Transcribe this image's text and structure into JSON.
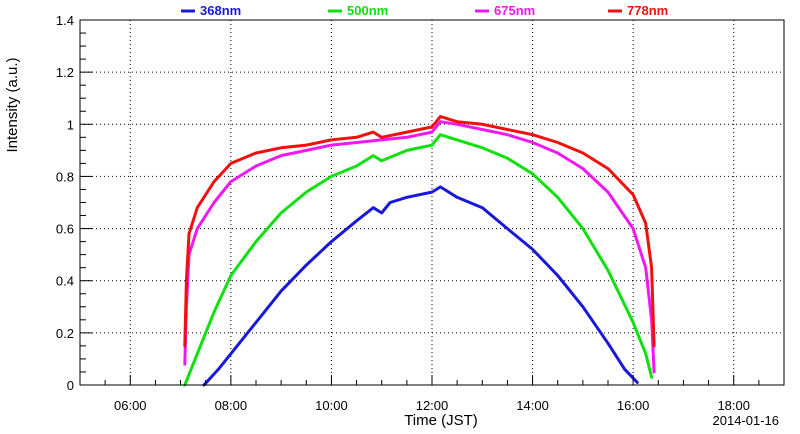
{
  "chart_data": {
    "type": "line",
    "xlabel": "Time (JST)",
    "ylabel": "Intensity (a.u.)",
    "date": "2014-01-16",
    "xlim": [
      "05:00",
      "19:00"
    ],
    "ylim": [
      0,
      1.4
    ],
    "x_ticks": [
      "06:00",
      "08:00",
      "10:00",
      "12:00",
      "14:00",
      "16:00",
      "18:00"
    ],
    "y_ticks": [
      "0",
      "0.2",
      "0.4",
      "0.6",
      "0.8",
      "1",
      "1.2",
      "1.4"
    ],
    "grid": true,
    "legend_position": "top",
    "series": [
      {
        "name": "368nm",
        "color": "#1818d8",
        "points": [
          [
            "07:28",
            0.0
          ],
          [
            "07:45",
            0.06
          ],
          [
            "08:00",
            0.12
          ],
          [
            "08:30",
            0.24
          ],
          [
            "09:00",
            0.36
          ],
          [
            "09:30",
            0.46
          ],
          [
            "10:00",
            0.55
          ],
          [
            "10:30",
            0.63
          ],
          [
            "10:50",
            0.68
          ],
          [
            "11:00",
            0.66
          ],
          [
            "11:10",
            0.7
          ],
          [
            "11:30",
            0.72
          ],
          [
            "12:00",
            0.74
          ],
          [
            "12:10",
            0.76
          ],
          [
            "12:30",
            0.72
          ],
          [
            "13:00",
            0.68
          ],
          [
            "13:30",
            0.6
          ],
          [
            "14:00",
            0.52
          ],
          [
            "14:30",
            0.42
          ],
          [
            "15:00",
            0.3
          ],
          [
            "15:30",
            0.16
          ],
          [
            "15:50",
            0.06
          ],
          [
            "16:05",
            0.01
          ]
        ]
      },
      {
        "name": "500nm",
        "color": "#10e010",
        "points": [
          [
            "07:05",
            0.0
          ],
          [
            "07:10",
            0.04
          ],
          [
            "07:20",
            0.12
          ],
          [
            "07:40",
            0.28
          ],
          [
            "08:00",
            0.42
          ],
          [
            "08:30",
            0.55
          ],
          [
            "09:00",
            0.66
          ],
          [
            "09:30",
            0.74
          ],
          [
            "10:00",
            0.8
          ],
          [
            "10:30",
            0.84
          ],
          [
            "10:50",
            0.88
          ],
          [
            "11:00",
            0.86
          ],
          [
            "11:30",
            0.9
          ],
          [
            "12:00",
            0.92
          ],
          [
            "12:10",
            0.96
          ],
          [
            "12:30",
            0.94
          ],
          [
            "13:00",
            0.91
          ],
          [
            "13:30",
            0.87
          ],
          [
            "14:00",
            0.81
          ],
          [
            "14:30",
            0.72
          ],
          [
            "15:00",
            0.6
          ],
          [
            "15:30",
            0.44
          ],
          [
            "16:00",
            0.24
          ],
          [
            "16:15",
            0.12
          ],
          [
            "16:22",
            0.03
          ]
        ]
      },
      {
        "name": "675nm",
        "color": "#f018f0",
        "points": [
          [
            "07:05",
            0.08
          ],
          [
            "07:07",
            0.3
          ],
          [
            "07:10",
            0.5
          ],
          [
            "07:20",
            0.6
          ],
          [
            "07:40",
            0.7
          ],
          [
            "08:00",
            0.78
          ],
          [
            "08:30",
            0.84
          ],
          [
            "09:00",
            0.88
          ],
          [
            "09:30",
            0.9
          ],
          [
            "10:00",
            0.92
          ],
          [
            "10:30",
            0.93
          ],
          [
            "11:00",
            0.94
          ],
          [
            "11:30",
            0.95
          ],
          [
            "12:00",
            0.97
          ],
          [
            "12:10",
            1.01
          ],
          [
            "12:30",
            1.0
          ],
          [
            "13:00",
            0.98
          ],
          [
            "13:30",
            0.96
          ],
          [
            "14:00",
            0.93
          ],
          [
            "14:30",
            0.89
          ],
          [
            "15:00",
            0.83
          ],
          [
            "15:30",
            0.74
          ],
          [
            "16:00",
            0.6
          ],
          [
            "16:15",
            0.45
          ],
          [
            "16:22",
            0.25
          ],
          [
            "16:25",
            0.05
          ]
        ]
      },
      {
        "name": "778nm",
        "color": "#f01010",
        "points": [
          [
            "07:05",
            0.15
          ],
          [
            "07:07",
            0.4
          ],
          [
            "07:10",
            0.58
          ],
          [
            "07:20",
            0.68
          ],
          [
            "07:40",
            0.78
          ],
          [
            "08:00",
            0.85
          ],
          [
            "08:30",
            0.89
          ],
          [
            "09:00",
            0.91
          ],
          [
            "09:30",
            0.92
          ],
          [
            "10:00",
            0.94
          ],
          [
            "10:30",
            0.95
          ],
          [
            "10:50",
            0.97
          ],
          [
            "11:00",
            0.95
          ],
          [
            "11:30",
            0.97
          ],
          [
            "12:00",
            0.99
          ],
          [
            "12:10",
            1.03
          ],
          [
            "12:30",
            1.01
          ],
          [
            "13:00",
            1.0
          ],
          [
            "13:30",
            0.98
          ],
          [
            "14:00",
            0.96
          ],
          [
            "14:30",
            0.93
          ],
          [
            "15:00",
            0.89
          ],
          [
            "15:30",
            0.83
          ],
          [
            "16:00",
            0.73
          ],
          [
            "16:15",
            0.62
          ],
          [
            "16:22",
            0.45
          ],
          [
            "16:25",
            0.15
          ]
        ]
      }
    ]
  }
}
